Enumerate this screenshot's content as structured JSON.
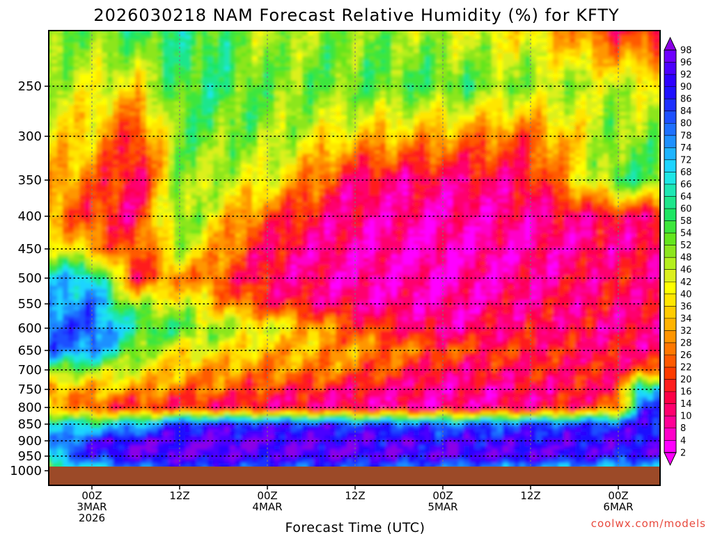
{
  "chart_data": {
    "type": "heatmap",
    "title": "2026030218 NAM Forecast Relative Humidity (%) for KFTY",
    "xlabel": "Forecast Time (UTC)",
    "ylabel": "",
    "credit": "coolwx.com/models",
    "y_scale": "pressure (hPa), inverted",
    "ylim": [
      1000,
      200
    ],
    "xlim": [
      -3,
      81
    ],
    "y_ticks": [
      250,
      300,
      350,
      400,
      450,
      500,
      550,
      600,
      650,
      700,
      750,
      800,
      850,
      900,
      950,
      1000
    ],
    "x_ticks": [
      {
        "hour": 6,
        "lines": [
          "00Z",
          "3MAR",
          "2026"
        ]
      },
      {
        "hour": 18,
        "lines": [
          "12Z"
        ]
      },
      {
        "hour": 30,
        "lines": [
          "00Z",
          "4MAR"
        ]
      },
      {
        "hour": 42,
        "lines": [
          "12Z"
        ]
      },
      {
        "hour": 54,
        "lines": [
          "00Z",
          "5MAR"
        ]
      },
      {
        "hour": 66,
        "lines": [
          "12Z"
        ]
      },
      {
        "hour": 78,
        "lines": [
          "00Z",
          "6MAR"
        ]
      }
    ],
    "grid": true,
    "colorbar": {
      "position": "right",
      "levels": [
        98,
        96,
        92,
        90,
        86,
        84,
        80,
        78,
        74,
        72,
        68,
        66,
        64,
        60,
        58,
        54,
        52,
        48,
        46,
        42,
        40,
        36,
        34,
        32,
        28,
        26,
        22,
        20,
        16,
        14,
        10,
        8,
        4,
        2
      ],
      "colors": [
        "#8a00e6",
        "#6d00ff",
        "#4b00ff",
        "#2d00ff",
        "#1e10ff",
        "#1e30ff",
        "#1e50ff",
        "#1e70ff",
        "#1e90ff",
        "#1eb4ff",
        "#1ed4ff",
        "#1ee6e6",
        "#1ee6b4",
        "#1ee68c",
        "#1ee664",
        "#3ce63c",
        "#64e61e",
        "#8ce61e",
        "#b4f01e",
        "#dcf01e",
        "#ffff00",
        "#ffe600",
        "#ffcc00",
        "#ffb400",
        "#ff9600",
        "#ff7800",
        "#ff5a00",
        "#ff3c00",
        "#ff1e1e",
        "#ff0046",
        "#ff006e",
        "#ff0096",
        "#ff00c8",
        "#ff00ff"
      ]
    },
    "ground_color": "#9c4a28",
    "series": [
      {
        "hour": -3,
        "rh": [
          [
            200,
            56
          ],
          [
            250,
            48
          ],
          [
            300,
            40
          ],
          [
            350,
            36
          ],
          [
            400,
            34
          ],
          [
            450,
            58
          ],
          [
            500,
            66
          ],
          [
            550,
            72
          ],
          [
            600,
            78
          ],
          [
            650,
            80
          ],
          [
            700,
            62
          ],
          [
            750,
            24
          ],
          [
            800,
            46
          ],
          [
            850,
            70
          ],
          [
            900,
            64
          ],
          [
            950,
            58
          ],
          [
            1000,
            52
          ]
        ]
      },
      {
        "hour": 6,
        "rh": [
          [
            200,
            52
          ],
          [
            250,
            44
          ],
          [
            300,
            36
          ],
          [
            350,
            26
          ],
          [
            400,
            20
          ],
          [
            450,
            30
          ],
          [
            500,
            72
          ],
          [
            550,
            78
          ],
          [
            600,
            84
          ],
          [
            650,
            78
          ],
          [
            700,
            48
          ],
          [
            750,
            34
          ],
          [
            800,
            20
          ],
          [
            850,
            66
          ],
          [
            900,
            88
          ],
          [
            950,
            90
          ],
          [
            1000,
            60
          ]
        ]
      },
      {
        "hour": 12,
        "rh": [
          [
            200,
            58
          ],
          [
            250,
            38
          ],
          [
            300,
            16
          ],
          [
            350,
            10
          ],
          [
            400,
            14
          ],
          [
            450,
            20
          ],
          [
            500,
            16
          ],
          [
            550,
            48
          ],
          [
            600,
            60
          ],
          [
            650,
            52
          ],
          [
            700,
            44
          ],
          [
            750,
            30
          ],
          [
            800,
            18
          ],
          [
            850,
            70
          ],
          [
            900,
            94
          ],
          [
            950,
            96
          ],
          [
            1000,
            72
          ]
        ]
      },
      {
        "hour": 18,
        "rh": [
          [
            200,
            60
          ],
          [
            250,
            58
          ],
          [
            300,
            54
          ],
          [
            350,
            50
          ],
          [
            400,
            56
          ],
          [
            450,
            48
          ],
          [
            500,
            30
          ],
          [
            550,
            46
          ],
          [
            600,
            56
          ],
          [
            650,
            40
          ],
          [
            700,
            32
          ],
          [
            750,
            26
          ],
          [
            800,
            16
          ],
          [
            850,
            88
          ],
          [
            900,
            94
          ],
          [
            950,
            96
          ],
          [
            1000,
            82
          ]
        ]
      },
      {
        "hour": 24,
        "rh": [
          [
            200,
            56
          ],
          [
            250,
            58
          ],
          [
            300,
            52
          ],
          [
            350,
            46
          ],
          [
            400,
            36
          ],
          [
            450,
            28
          ],
          [
            500,
            22
          ],
          [
            550,
            30
          ],
          [
            600,
            48
          ],
          [
            650,
            40
          ],
          [
            700,
            30
          ],
          [
            750,
            24
          ],
          [
            800,
            14
          ],
          [
            850,
            90
          ],
          [
            900,
            96
          ],
          [
            950,
            96
          ],
          [
            1000,
            80
          ]
        ]
      },
      {
        "hour": 30,
        "rh": [
          [
            200,
            46
          ],
          [
            250,
            52
          ],
          [
            300,
            50
          ],
          [
            350,
            42
          ],
          [
            400,
            22
          ],
          [
            450,
            14
          ],
          [
            500,
            12
          ],
          [
            550,
            18
          ],
          [
            600,
            44
          ],
          [
            650,
            34
          ],
          [
            700,
            28
          ],
          [
            750,
            20
          ],
          [
            800,
            12
          ],
          [
            850,
            88
          ],
          [
            900,
            96
          ],
          [
            950,
            94
          ],
          [
            1000,
            78
          ]
        ]
      },
      {
        "hour": 42,
        "rh": [
          [
            200,
            52
          ],
          [
            250,
            54
          ],
          [
            300,
            36
          ],
          [
            350,
            12
          ],
          [
            400,
            10
          ],
          [
            450,
            8
          ],
          [
            500,
            8
          ],
          [
            550,
            10
          ],
          [
            600,
            22
          ],
          [
            650,
            30
          ],
          [
            700,
            26
          ],
          [
            750,
            14
          ],
          [
            800,
            10
          ],
          [
            850,
            86
          ],
          [
            900,
            94
          ],
          [
            950,
            96
          ],
          [
            1000,
            76
          ]
        ]
      },
      {
        "hour": 54,
        "rh": [
          [
            200,
            46
          ],
          [
            250,
            56
          ],
          [
            300,
            30
          ],
          [
            350,
            12
          ],
          [
            400,
            8
          ],
          [
            450,
            6
          ],
          [
            500,
            6
          ],
          [
            550,
            8
          ],
          [
            600,
            10
          ],
          [
            650,
            22
          ],
          [
            700,
            14
          ],
          [
            750,
            10
          ],
          [
            800,
            8
          ],
          [
            850,
            80
          ],
          [
            900,
            92
          ],
          [
            950,
            94
          ],
          [
            1000,
            72
          ]
        ]
      },
      {
        "hour": 66,
        "rh": [
          [
            200,
            38
          ],
          [
            250,
            50
          ],
          [
            300,
            24
          ],
          [
            350,
            14
          ],
          [
            400,
            10
          ],
          [
            450,
            8
          ],
          [
            500,
            10
          ],
          [
            550,
            12
          ],
          [
            600,
            14
          ],
          [
            650,
            18
          ],
          [
            700,
            16
          ],
          [
            750,
            12
          ],
          [
            800,
            10
          ],
          [
            850,
            84
          ],
          [
            900,
            92
          ],
          [
            950,
            96
          ],
          [
            1000,
            68
          ]
        ]
      },
      {
        "hour": 78,
        "rh": [
          [
            200,
            18
          ],
          [
            250,
            46
          ],
          [
            300,
            52
          ],
          [
            350,
            58
          ],
          [
            400,
            14
          ],
          [
            450,
            12
          ],
          [
            500,
            16
          ],
          [
            550,
            14
          ],
          [
            600,
            12
          ],
          [
            650,
            14
          ],
          [
            700,
            16
          ],
          [
            750,
            18
          ],
          [
            800,
            24
          ],
          [
            850,
            86
          ],
          [
            900,
            92
          ],
          [
            950,
            90
          ],
          [
            1000,
            66
          ]
        ]
      },
      {
        "hour": 81,
        "rh": [
          [
            200,
            16
          ],
          [
            250,
            44
          ],
          [
            300,
            50
          ],
          [
            350,
            56
          ],
          [
            400,
            14
          ],
          [
            450,
            12
          ],
          [
            500,
            14
          ],
          [
            550,
            14
          ],
          [
            600,
            12
          ],
          [
            650,
            14
          ],
          [
            700,
            20
          ],
          [
            750,
            72
          ],
          [
            800,
            84
          ],
          [
            850,
            90
          ],
          [
            900,
            92
          ],
          [
            950,
            90
          ],
          [
            1000,
            64
          ]
        ]
      }
    ]
  }
}
